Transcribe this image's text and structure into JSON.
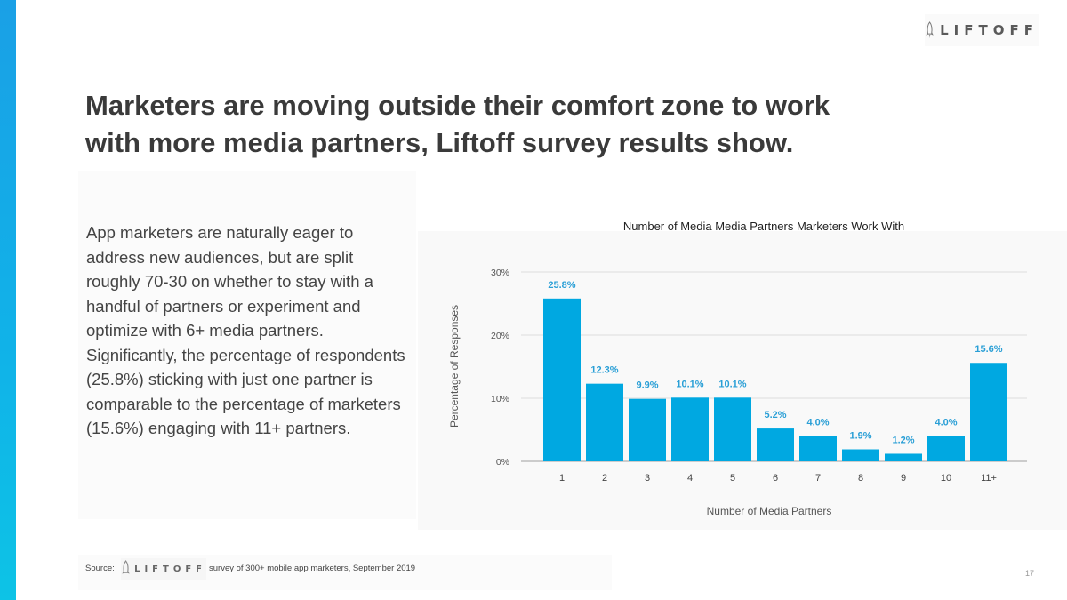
{
  "brand": {
    "logo_text": "LIFTOFF",
    "accent": "#00a8e1"
  },
  "heading": {
    "line1": "Marketers are moving outside their comfort zone to work",
    "line2": "with more media partners, Liftoff survey results show."
  },
  "body_text": "App marketers are naturally eager to address new audiences, but are split roughly 70-30 on whether to stay with a handful of partners or experiment and optimize with 6+ media partners. Significantly, the percentage of respondents (25.8%) sticking with just one partner is comparable to the percentage of marketers (15.6%) engaging with 11+ partners.",
  "chart_data": {
    "type": "bar",
    "title": "Number of Media Media Partners Marketers Work With",
    "xlabel": "Number of Media Partners",
    "ylabel": "Percentage of Responses",
    "categories": [
      "1",
      "2",
      "3",
      "4",
      "5",
      "6",
      "7",
      "8",
      "9",
      "10",
      "11+"
    ],
    "values": [
      25.8,
      12.3,
      9.9,
      10.1,
      10.1,
      5.2,
      4.0,
      1.9,
      1.2,
      4.0,
      15.6
    ],
    "value_labels": [
      "25.8%",
      "12.3%",
      "9.9%",
      "10.1%",
      "10.1%",
      "5.2%",
      "4.0%",
      "1.9%",
      "1.2%",
      "4.0%",
      "15.6%"
    ],
    "ylim": [
      0,
      30
    ],
    "yticks": [
      0,
      10,
      20,
      30
    ],
    "ytick_labels": [
      "0%",
      "10%",
      "20%",
      "30%"
    ],
    "grid": true,
    "bar_color": "#00a8e1",
    "label_color": "#2a9fd6"
  },
  "footer": {
    "source_label": "Source:",
    "source_logo_text": "LIFTOFF",
    "source_text": "survey of 300+ mobile app marketers, September 2019",
    "page_number": "17"
  }
}
